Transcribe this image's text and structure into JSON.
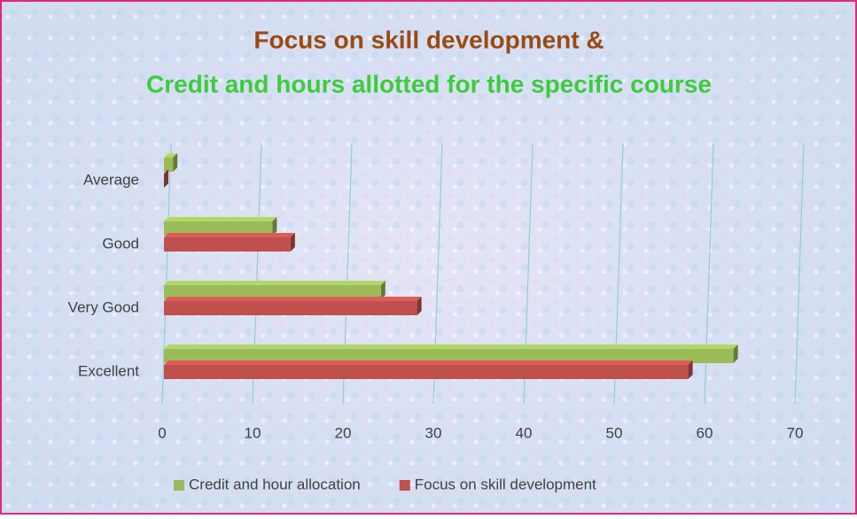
{
  "chart_data": {
    "type": "bar3d_horizontal",
    "title": "Focus on skill development &",
    "subtitle": "Credit and hours allotted for the specific course",
    "categories": [
      "Excellent",
      "Very Good",
      "Good",
      "Average"
    ],
    "series": [
      {
        "name": "Credit and hour allocation",
        "color": "#9bbb59",
        "values": [
          63,
          24,
          12,
          1
        ]
      },
      {
        "name": "Focus on skill development",
        "color": "#c0504d",
        "values": [
          58,
          28,
          14,
          0
        ]
      }
    ],
    "xlim": [
      0,
      70
    ],
    "xticks": [
      0,
      10,
      20,
      30,
      40,
      50,
      60,
      70
    ],
    "grid": true,
    "legend": "bottom"
  }
}
